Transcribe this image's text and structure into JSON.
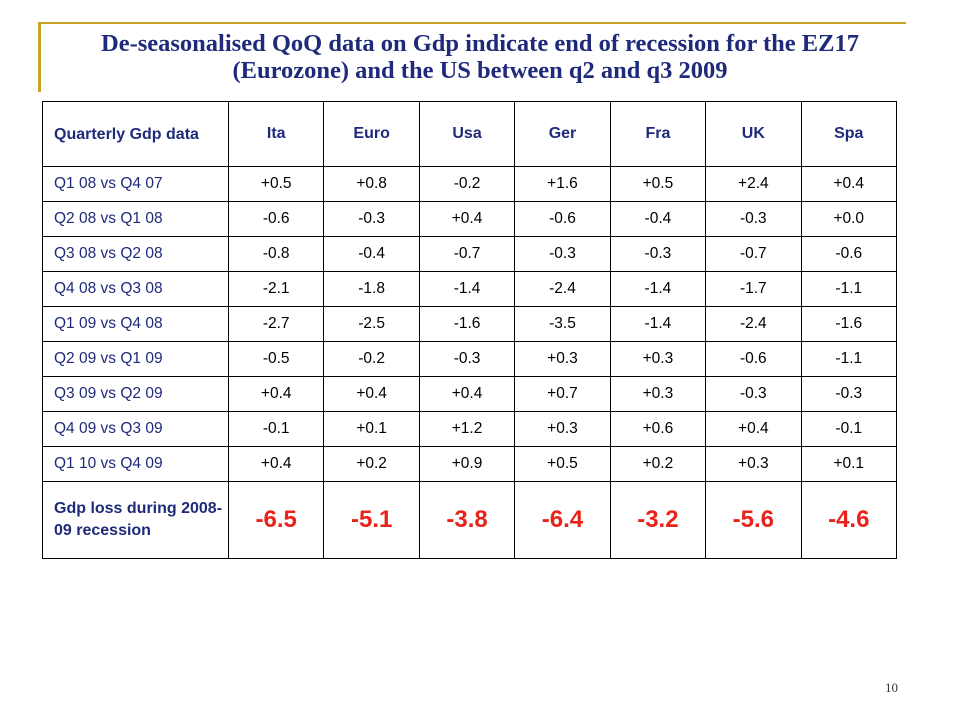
{
  "slide": {
    "title": "De-seasonalised QoQ data on Gdp indicate end of recession for the EZ17 (Eurozone) and the US between q2 and q3 2009",
    "page_number": "10"
  },
  "table": {
    "header": [
      "Quarterly Gdp data",
      "Ita",
      "Euro",
      "Usa",
      "Ger",
      "Fra",
      "UK",
      "Spa"
    ],
    "rows": [
      {
        "label": "Q1 08 vs Q4 07",
        "values": [
          "+0.5",
          "+0.8",
          "-0.2",
          "+1.6",
          "+0.5",
          "+2.4",
          "+0.4"
        ]
      },
      {
        "label": "Q2 08 vs Q1 08",
        "values": [
          "-0.6",
          "-0.3",
          "+0.4",
          "-0.6",
          "-0.4",
          "-0.3",
          "+0.0"
        ]
      },
      {
        "label": "Q3 08 vs Q2 08",
        "values": [
          "-0.8",
          "-0.4",
          "-0.7",
          "-0.3",
          "-0.3",
          "-0.7",
          "-0.6"
        ]
      },
      {
        "label": "Q4 08 vs Q3 08",
        "values": [
          "-2.1",
          "-1.8",
          "-1.4",
          "-2.4",
          "-1.4",
          "-1.7",
          "-1.1"
        ]
      },
      {
        "label": "Q1 09 vs Q4 08",
        "values": [
          "-2.7",
          "-2.5",
          "-1.6",
          "-3.5",
          "-1.4",
          "-2.4",
          "-1.6"
        ]
      },
      {
        "label": "Q2 09 vs Q1 09",
        "values": [
          "-0.5",
          "-0.2",
          "-0.3",
          "+0.3",
          "+0.3",
          "-0.6",
          "-1.1"
        ]
      },
      {
        "label": "Q3 09 vs Q2 09",
        "values": [
          "+0.4",
          "+0.4",
          "+0.4",
          "+0.7",
          "+0.3",
          "-0.3",
          "-0.3"
        ]
      },
      {
        "label": "Q4 09 vs Q3 09",
        "values": [
          "-0.1",
          "+0.1",
          "+1.2",
          "+0.3",
          "+0.6",
          "+0.4",
          "-0.1"
        ]
      },
      {
        "label": "Q1 10 vs Q4 09",
        "values": [
          "+0.4",
          "+0.2",
          "+0.9",
          "+0.5",
          "+0.2",
          "+0.3",
          "+0.1"
        ]
      }
    ],
    "total": {
      "label": "Gdp loss during 2008-09 recession",
      "values": [
        "-6.5",
        "-5.1",
        "-3.8",
        "-6.4",
        "-3.2",
        "-5.6",
        "-4.6"
      ]
    }
  },
  "colors": {
    "title_text": "#1f2a7a",
    "accent_rule": "#c9a227",
    "highlight_values": "#e8231b"
  }
}
